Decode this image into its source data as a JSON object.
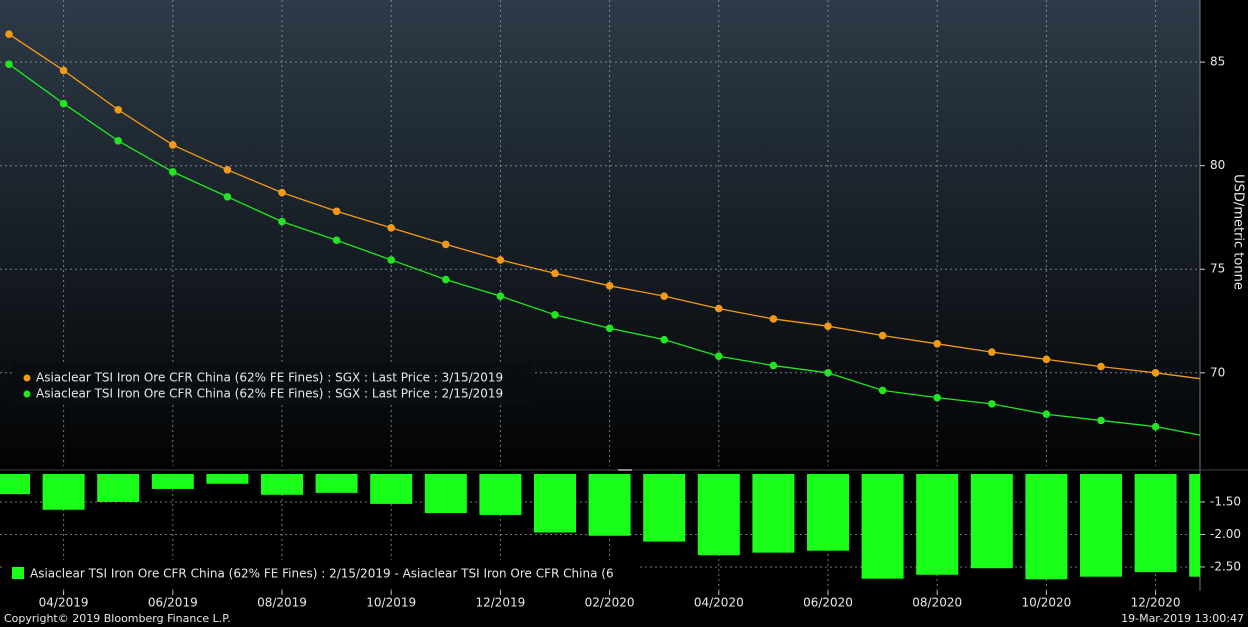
{
  "chart_data": [
    {
      "type": "line",
      "ylabel": "USD/metric tonne",
      "categories": [
        null,
        "04/2019",
        null,
        "06/2019",
        null,
        "08/2019",
        null,
        "10/2019",
        null,
        "12/2019",
        null,
        "02/2020",
        null,
        "04/2020",
        null,
        "06/2020",
        null,
        "08/2020",
        null,
        "10/2020",
        null,
        "12/2020",
        null
      ],
      "series": [
        {
          "name": "Asiaclear TSI Iron Ore CFR China (62% FE Fines) : SGX : Last Price : 3/15/2019",
          "color": "#f29a16",
          "values": [
            86.35,
            84.6,
            82.7,
            81.0,
            79.8,
            78.7,
            77.8,
            77.0,
            76.2,
            75.45,
            74.8,
            74.2,
            73.7,
            73.1,
            72.6,
            72.25,
            71.8,
            71.4,
            71.0,
            70.65,
            70.3,
            70.0,
            69.65
          ]
        },
        {
          "name": "Asiaclear TSI Iron Ore CFR China (62% FE Fines) : SGX : Last Price : 2/15/2019",
          "color": "#22e622",
          "values": [
            84.9,
            83.0,
            81.2,
            79.7,
            78.5,
            77.3,
            76.4,
            75.45,
            74.5,
            73.7,
            72.8,
            72.15,
            71.6,
            70.8,
            70.35,
            70.0,
            69.15,
            68.8,
            68.5,
            68.0,
            67.7,
            67.4,
            66.9
          ]
        }
      ],
      "ylim": [
        65.5,
        88.0
      ],
      "yticks": [
        70,
        75,
        80,
        85
      ],
      "grid": true
    },
    {
      "type": "bar",
      "categories": [
        null,
        "04/2019",
        null,
        "06/2019",
        null,
        "08/2019",
        null,
        "10/2019",
        null,
        "12/2019",
        null,
        "02/2020",
        null,
        "04/2020",
        null,
        "06/2020",
        null,
        "08/2020",
        null,
        "10/2020",
        null,
        "12/2020",
        null
      ],
      "series": [
        {
          "name": "Asiaclear TSI Iron Ore CFR China (62% FE Fines) : 2/15/2019 - Asiaclear TSI Iron Ore CFR China (6",
          "color": "#1aff1a",
          "values": [
            -1.38,
            -1.62,
            -1.5,
            -1.3,
            -1.22,
            -1.39,
            -1.36,
            -1.53,
            -1.67,
            -1.7,
            -1.97,
            -2.02,
            -2.11,
            -2.32,
            -2.28,
            -2.25,
            -2.68,
            -2.62,
            -2.52,
            -2.69,
            -2.65,
            -2.58,
            -2.65
          ]
        }
      ],
      "ylim": [
        -2.87,
        -1.07
      ],
      "yticks": [
        {
          "value": -1.5,
          "label": "-1.50"
        },
        {
          "value": -2.0,
          "label": "-2.00"
        },
        {
          "value": -2.5,
          "label": "-2.50"
        }
      ],
      "grid": true
    }
  ],
  "footer": {
    "copyright": "Copyright© 2019 Bloomberg Finance L.P.",
    "timestamp": "19-Mar-2019 13:00:47"
  }
}
